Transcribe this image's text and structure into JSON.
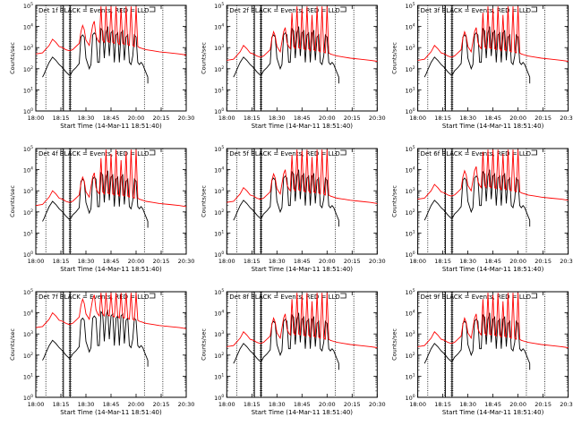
{
  "chart_data": {
    "type": "line",
    "shared": {
      "ylabel": "Counts/sec",
      "xlabel": "Start Time (14-Mar-11 18:51:40)",
      "x_ticks": [
        "18:00",
        "18:15",
        "18:30",
        "18:45",
        "20:00",
        "20:15",
        "20:30"
      ],
      "y_ticks": [
        "10^0",
        "10^1",
        "10^2",
        "10^3",
        "10^4",
        "10^5"
      ],
      "ylim_log10": [
        0,
        5
      ],
      "xlim": [
        0,
        90
      ],
      "vertical_markers": [
        6,
        16,
        20,
        21,
        65,
        76
      ],
      "colors": {
        "events": "#000000",
        "lld": "#ff0000"
      },
      "legend_note": "BLACK = Events, RED = LLD"
    },
    "panels": [
      {
        "title": "Det 1f BLACK = Events, RED = LLD",
        "lld_base": 2.75,
        "events_offset": 0.0
      },
      {
        "title": "Det 2f BLACK = Events, RED = LLD",
        "lld_base": 2.45,
        "events_offset": 0.0
      },
      {
        "title": "Det 3f BLACK = Events, RED = LLD",
        "lld_base": 2.45,
        "events_offset": 0.0
      },
      {
        "title": "Det 4f BLACK = Events, RED = LLD",
        "lld_base": 2.35,
        "events_offset": -0.05
      },
      {
        "title": "Det 5f BLACK = Events, RED = LLD",
        "lld_base": 2.5,
        "events_offset": 0.0
      },
      {
        "title": "Det 6f BLACK = Events, RED = LLD",
        "lld_base": 2.65,
        "events_offset": 0.0
      },
      {
        "title": "Det 7f BLACK = Events, RED = LLD",
        "lld_base": 3.35,
        "events_offset": 0.15
      },
      {
        "title": "Det 8f BLACK = Events, RED = LLD",
        "lld_base": 2.45,
        "events_offset": 0.0
      },
      {
        "title": "Det 9f BLACK = Events, RED = LLD",
        "lld_base": 2.45,
        "events_offset": 0.0
      }
    ],
    "series_template": {
      "events": {
        "name": "Events",
        "x": [
          5,
          6,
          8,
          10,
          12,
          14,
          16,
          18,
          20,
          21,
          22,
          24,
          26,
          27,
          28,
          29,
          30,
          32,
          33,
          34,
          35,
          36,
          37,
          38,
          39,
          40,
          41,
          42,
          43,
          44,
          45,
          46,
          47,
          48,
          49,
          50,
          51,
          52,
          53,
          54,
          55,
          56,
          57,
          58,
          59,
          60,
          61,
          62,
          63,
          64,
          65,
          66,
          67
        ],
        "y_log10": [
          1.75,
          1.95,
          2.3,
          2.55,
          2.4,
          2.2,
          2.05,
          1.85,
          1.7,
          1.75,
          1.9,
          2.05,
          2.25,
          3.5,
          3.6,
          3.5,
          2.5,
          2.0,
          2.2,
          3.6,
          3.7,
          3.6,
          2.3,
          2.3,
          3.9,
          3.8,
          2.5,
          3.7,
          4.0,
          2.6,
          3.7,
          3.8,
          2.3,
          3.6,
          3.7,
          2.3,
          3.7,
          3.8,
          2.4,
          3.5,
          3.6,
          2.3,
          2.2,
          2.6,
          3.6,
          3.5,
          2.3,
          2.2,
          2.3,
          2.2,
          2.0,
          1.8,
          1.6
        ]
      },
      "lld": {
        "name": "LLD",
        "x": [
          0,
          4,
          8,
          10,
          12,
          14,
          16,
          18,
          20,
          22,
          24,
          26,
          27,
          28,
          29,
          30,
          32,
          34,
          35,
          36,
          37,
          38,
          39,
          40,
          41,
          42,
          43,
          44,
          45,
          46,
          47,
          48,
          49,
          50,
          51,
          52,
          53,
          54,
          55,
          56,
          57,
          58,
          59,
          60,
          61,
          62,
          64,
          66,
          70,
          74,
          80,
          86,
          90
        ],
        "y_offset_log10": [
          -0.05,
          0.0,
          0.35,
          0.65,
          0.5,
          0.3,
          0.25,
          0.15,
          0.1,
          0.15,
          0.3,
          0.45,
          1.0,
          1.3,
          1.1,
          0.6,
          0.35,
          1.3,
          1.5,
          0.8,
          0.6,
          0.5,
          2.2,
          0.6,
          0.5,
          2.6,
          0.55,
          0.5,
          2.4,
          0.5,
          0.45,
          2.7,
          0.5,
          0.4,
          2.1,
          0.45,
          0.4,
          2.5,
          0.4,
          0.35,
          2.7,
          0.35,
          0.3,
          2.8,
          0.3,
          0.25,
          0.2,
          0.15,
          0.1,
          0.05,
          0.0,
          -0.05,
          -0.1
        ]
      }
    }
  }
}
